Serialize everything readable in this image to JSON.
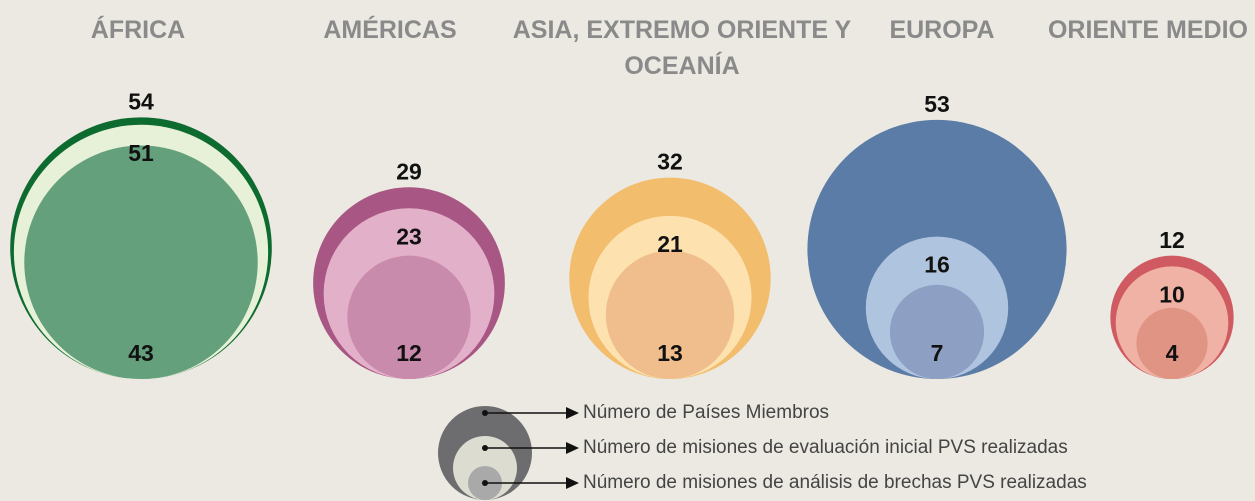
{
  "chart_data": {
    "type": "nested-circles",
    "categories": [
      "ÁFRICA",
      "AMÉRICAS",
      "ASIA, EXTREMO ORIENTE Y OCEANÍA",
      "EUROPA",
      "ORIENTE MEDIO"
    ],
    "series": [
      {
        "name": "Número de Países Miembros",
        "color": "#6d6d6f",
        "values": [
          54,
          29,
          32,
          53,
          12
        ]
      },
      {
        "name": "Número de misiones de evaluación inicial PVS realizadas",
        "color": "#dcdcd0",
        "values": [
          51,
          23,
          21,
          16,
          10
        ]
      },
      {
        "name": "Número de misiones de análisis de brechas PVS realizadas",
        "color": "#a9a9a9",
        "values": [
          43,
          12,
          13,
          7,
          4
        ]
      }
    ],
    "category_colors": [
      [
        "#0d6b2f",
        "#e6f1d8",
        "#64a07c"
      ],
      [
        "#a85683",
        "#e3b0c9",
        "#c98bab"
      ],
      [
        "#f2bd6c",
        "#fde2b0",
        "#f0be8c"
      ],
      [
        "#5b7ca6",
        "#afc4de",
        "#8da0c4"
      ],
      [
        "#d05a62",
        "#f0b2a4",
        "#e09484"
      ]
    ]
  }
}
